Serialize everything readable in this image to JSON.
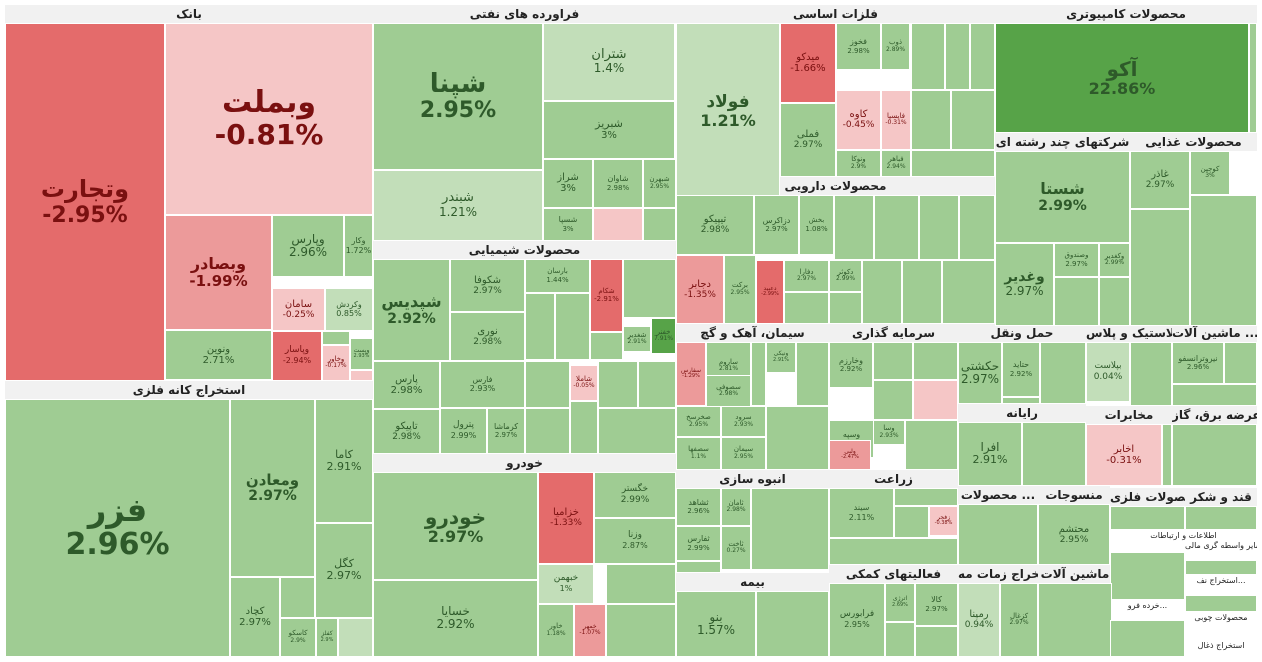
{
  "colors": {
    "pos_light": "#c2deb9",
    "pos_mid": "#9fcc93",
    "pos_dark": "#57a348",
    "neg_light": "#f5c6c6",
    "neg_mid": "#ec9a9a",
    "neg_dark": "#e46b6b",
    "header_bg": "#f1f1f1"
  },
  "sectors": [
    {
      "id": "bank",
      "title": "بانک"
    },
    {
      "id": "metal-ext",
      "title": "استخراج کانه فلزی"
    },
    {
      "id": "oil",
      "title": "فراورده های نفتی"
    },
    {
      "id": "chem",
      "title": "محصولات شیمیایی"
    },
    {
      "id": "auto",
      "title": "خودرو"
    },
    {
      "id": "basic-metal",
      "title": "فلزات اساسی"
    },
    {
      "id": "pharma",
      "title": "محصولات دارویی"
    },
    {
      "id": "cement",
      "title": "سیمان، آهک و گچ"
    },
    {
      "id": "invest",
      "title": "سرمایه گذاری"
    },
    {
      "id": "transport",
      "title": "حمل ونقل"
    },
    {
      "id": "mass",
      "title": "انبوه سازی"
    },
    {
      "id": "agri",
      "title": "زراعت"
    },
    {
      "id": "insurance",
      "title": "بیمه"
    },
    {
      "id": "aux",
      "title": "فعالیتهای کمکی"
    },
    {
      "id": "computer",
      "title": "محصولات کامپیوتری"
    },
    {
      "id": "multi",
      "title": "شرکتهای چند رشته ای"
    },
    {
      "id": "food",
      "title": "محصولات غذایی"
    },
    {
      "id": "rubber",
      "title": "لاستیک و پلاس..."
    },
    {
      "id": "machinery",
      "title": "ماشین آلات ..."
    },
    {
      "id": "computing",
      "title": "رایانه"
    },
    {
      "id": "telecom",
      "title": "مخابرات"
    },
    {
      "id": "utility",
      "title": "عرضه برق، گاز"
    },
    {
      "id": "products",
      "title": "محصولات ..."
    },
    {
      "id": "textile",
      "title": "منسوجات"
    },
    {
      "id": "metal-prod",
      "title": "محصولات فلزی"
    },
    {
      "id": "sugar",
      "title": "قند و شکر"
    },
    {
      "id": "info",
      "title": "اطلاعات و ارتباطات"
    },
    {
      "id": "machinery2",
      "title": "ماشین آلات"
    },
    {
      "id": "extract2",
      "title": "استخراج ز..."
    },
    {
      "id": "services",
      "title": "خدمات مه..."
    },
    {
      "id": "other-nonmetal",
      "title": "سایر واسطه گری مالی"
    },
    {
      "id": "extract3",
      "title": "استخراج نف..."
    },
    {
      "id": "tobacco",
      "title": "خرده فرو..."
    },
    {
      "id": "paper",
      "title": "کاشی و س..."
    },
    {
      "id": "wood",
      "title": "محصولات چوبی"
    },
    {
      "id": "coal",
      "title": "استخراج ذغال"
    }
  ],
  "tiles": [
    {
      "name": "وبملت",
      "value": "-0.81%"
    },
    {
      "name": "وتجارت",
      "value": "-2.95%"
    },
    {
      "name": "وبصادر",
      "value": "-1.99%"
    },
    {
      "name": "وپارس",
      "value": "2.96%"
    },
    {
      "name": "وکار",
      "value": "1.72%"
    },
    {
      "name": "سامان",
      "value": "-0.25%"
    },
    {
      "name": "وکردش",
      "value": "0.85%"
    },
    {
      "name": "ونوین",
      "value": "2.71%"
    },
    {
      "name": "وپاسار",
      "value": "-2.94%"
    },
    {
      "name": "وخاور",
      "value": "-0.17%"
    },
    {
      "name": "وپست",
      "value": "2.93%"
    },
    {
      "name": "فزر",
      "value": "2.96%"
    },
    {
      "name": "ومعادن",
      "value": "2.97%"
    },
    {
      "name": "کاما",
      "value": "2.91%"
    },
    {
      "name": "کگل",
      "value": "2.97%"
    },
    {
      "name": "کچاد",
      "value": "2.97%"
    },
    {
      "name": "کاسکو",
      "value": "2.9%"
    },
    {
      "name": "کفلز",
      "value": "2.9%"
    },
    {
      "name": "شپنا",
      "value": "2.95%"
    },
    {
      "name": "شتران",
      "value": "1.4%"
    },
    {
      "name": "شبریز",
      "value": "3%"
    },
    {
      "name": "شراز",
      "value": "3%"
    },
    {
      "name": "شاوان",
      "value": "2.98%"
    },
    {
      "name": "شبهرن",
      "value": "2.95%"
    },
    {
      "name": "شسپا",
      "value": "3%"
    },
    {
      "name": "شبندر",
      "value": "1.21%"
    },
    {
      "name": "شپدیس",
      "value": "2.92%"
    },
    {
      "name": "شکوفا",
      "value": "2.97%"
    },
    {
      "name": "نوری",
      "value": "2.98%"
    },
    {
      "name": "پارس",
      "value": "2.98%"
    },
    {
      "name": "فارس",
      "value": "2.93%"
    },
    {
      "name": "تاپیکو",
      "value": "2.98%"
    },
    {
      "name": "پترول",
      "value": "2.99%"
    },
    {
      "name": "کرماشا",
      "value": "2.97%"
    },
    {
      "name": "شکام",
      "value": "-2.91%"
    },
    {
      "name": "شغدیر",
      "value": "2.91%"
    },
    {
      "name": "خفنر",
      "value": "7.91%"
    },
    {
      "name": "بارسان",
      "value": "1.44%"
    },
    {
      "name": "شاملا",
      "value": "-0.05%"
    },
    {
      "name": "خودرو",
      "value": "2.97%"
    },
    {
      "name": "خسایا",
      "value": "2.92%"
    },
    {
      "name": "خزامیا",
      "value": "-1.33%"
    },
    {
      "name": "خگستر",
      "value": "2.99%"
    },
    {
      "name": "وزنا",
      "value": "2.87%"
    },
    {
      "name": "خبهمن",
      "value": "1%"
    },
    {
      "name": "خاور",
      "value": "1.18%"
    },
    {
      "name": "خمهر",
      "value": "-1.07%"
    },
    {
      "name": "فولاد",
      "value": "1.21%"
    },
    {
      "name": "میدکو",
      "value": "-1.66%"
    },
    {
      "name": "فخوز",
      "value": "2.98%"
    },
    {
      "name": "ذوب",
      "value": "2.89%"
    },
    {
      "name": "کاوه",
      "value": "-0.45%"
    },
    {
      "name": "فایسپا",
      "value": "-0.31%"
    },
    {
      "name": "فملی",
      "value": "2.97%"
    },
    {
      "name": "ونوکا",
      "value": "2.9%"
    },
    {
      "name": "فباهر",
      "value": "2.94%"
    },
    {
      "name": "تیپیکو",
      "value": "2.98%"
    },
    {
      "name": "دزاکرس",
      "value": "2.97%"
    },
    {
      "name": "بخش",
      "value": "1.08%"
    },
    {
      "name": "دجابر",
      "value": "-1.35%"
    },
    {
      "name": "برکت",
      "value": "2.95%"
    },
    {
      "name": "دعبید",
      "value": "-2.99%"
    },
    {
      "name": "دفارا",
      "value": "2.97%"
    },
    {
      "name": "دکوثر",
      "value": "2.99%"
    },
    {
      "name": "ساروم",
      "value": "2.81%"
    },
    {
      "name": "سصوفی",
      "value": "2.98%"
    },
    {
      "name": "سفارس",
      "value": "-1.29%"
    },
    {
      "name": "صخرسخ",
      "value": "2.95%"
    },
    {
      "name": "سرود",
      "value": "2.93%"
    },
    {
      "name": "سیمان",
      "value": "2.95%"
    },
    {
      "name": "سصفها",
      "value": "1.1%"
    },
    {
      "name": "ونیکی",
      "value": "2.91%"
    },
    {
      "name": "وخارزم",
      "value": "2.92%"
    },
    {
      "name": "وسپه",
      "value": "2.86%"
    },
    {
      "name": "وسا",
      "value": "2.93%"
    },
    {
      "name": "ولبی",
      "value": "-2.47%"
    },
    {
      "name": "حکشتی",
      "value": "2.97%"
    },
    {
      "name": "حتاید",
      "value": "2.92%"
    },
    {
      "name": "ثشاهد",
      "value": "2.96%"
    },
    {
      "name": "ثفارس",
      "value": "2.99%"
    },
    {
      "name": "ثاخت",
      "value": "0.27%"
    },
    {
      "name": "ثامان",
      "value": "2.98%"
    },
    {
      "name": "سیند",
      "value": "2.11%"
    },
    {
      "name": "زفجر",
      "value": "-0.38%"
    },
    {
      "name": "بنو",
      "value": "1.57%"
    },
    {
      "name": "فرابورس",
      "value": "2.95%"
    },
    {
      "name": "اترژی",
      "value": "2.69%"
    },
    {
      "name": "کالا",
      "value": "2.97%"
    },
    {
      "name": "آکو",
      "value": "22.86%"
    },
    {
      "name": "شستا",
      "value": "2.99%"
    },
    {
      "name": "وصندوق",
      "value": "2.97%"
    },
    {
      "name": "وغدیر",
      "value": "2.97%"
    },
    {
      "name": "وکغدیر",
      "value": "2.99%"
    },
    {
      "name": "غاذر",
      "value": "2.97%"
    },
    {
      "name": "کوجین",
      "value": "3%"
    },
    {
      "name": "بپلاست",
      "value": "0.04%"
    },
    {
      "name": "نیروترانسفو",
      "value": "2.96%"
    },
    {
      "name": "افرا",
      "value": "2.91%"
    },
    {
      "name": "اخابر",
      "value": "-0.31%"
    },
    {
      "name": "محتشم",
      "value": "2.95%"
    },
    {
      "name": "رمپنا",
      "value": "0.94%"
    },
    {
      "name": "کزغال",
      "value": "2.97%"
    }
  ]
}
